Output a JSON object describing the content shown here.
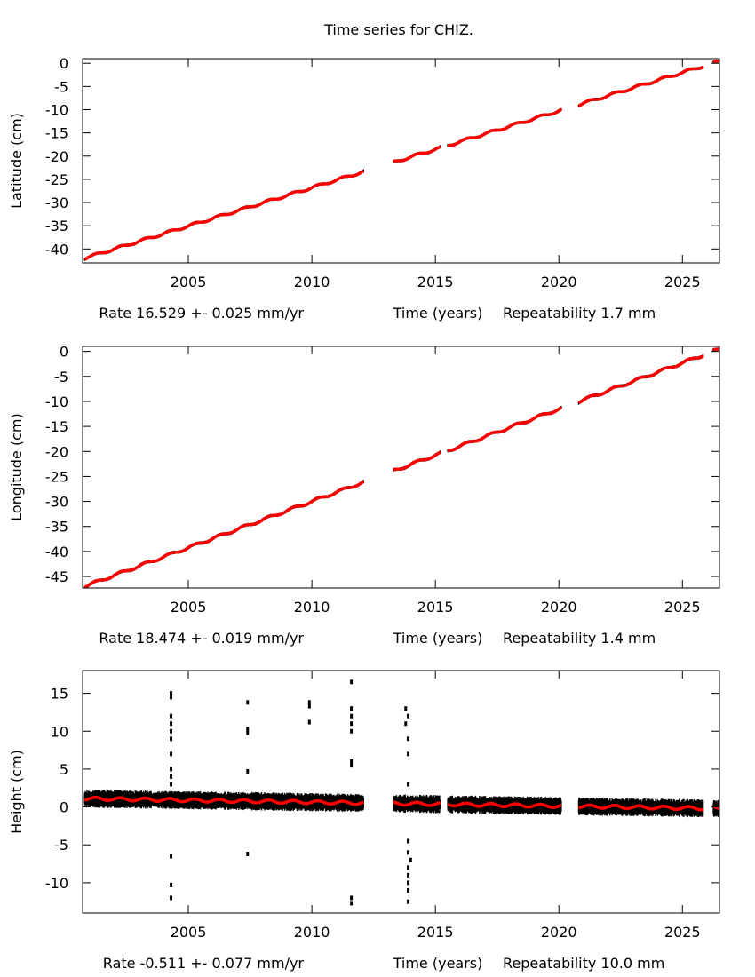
{
  "chart_data": {
    "title": "Time series for CHIZ.",
    "type": "scatter",
    "xlim": [
      2000.72,
      2026.5
    ],
    "xticks": [
      2005,
      2010,
      2015,
      2020,
      2025
    ],
    "xlabel": "Time (years)",
    "segments": [
      [
        2000.8,
        2012.1
      ],
      [
        2013.3,
        2015.2
      ],
      [
        2015.5,
        2020.1
      ],
      [
        2020.8,
        2025.85
      ],
      [
        2026.25,
        2026.5
      ]
    ],
    "panels": [
      {
        "ylabel": "Latitude (cm)",
        "ylim": [
          -43,
          1
        ],
        "yticks": [
          0,
          -5,
          -10,
          -15,
          -20,
          -25,
          -30,
          -35,
          -40
        ],
        "start_value": -42,
        "rate_cm_per_yr": 1.6529,
        "noise_cm": 0.3,
        "rate_text": "Rate 16.529 +- 0.025 mm/yr",
        "time_text": "Time (years)",
        "repeat_text": "Repeatability 1.7 mm",
        "outliers": []
      },
      {
        "ylabel": "Longitude (cm)",
        "ylim": [
          -47.3,
          1
        ],
        "yticks": [
          0,
          -5,
          -10,
          -15,
          -20,
          -25,
          -30,
          -35,
          -40,
          -45
        ],
        "start_value": -47,
        "rate_cm_per_yr": 1.8474,
        "noise_cm": 0.3,
        "rate_text": "Rate 18.474 +- 0.019 mm/yr",
        "time_text": "Time (years)",
        "repeat_text": "Repeatability 1.4 mm",
        "outliers": []
      },
      {
        "ylabel": "Height (cm)",
        "ylim": [
          -14,
          18
        ],
        "yticks": [
          15,
          10,
          5,
          0,
          -5,
          -10
        ],
        "start_value": 1.1,
        "rate_cm_per_yr": -0.0511,
        "noise_cm": 1.0,
        "rate_text": "Rate -0.511 +- 0.077 mm/yr",
        "time_text": "Time (years)",
        "repeat_text": "Repeatability 10.0 mm",
        "outliers": [
          [
            2004.3,
            15
          ],
          [
            2004.3,
            14.5
          ],
          [
            2004.3,
            12
          ],
          [
            2004.3,
            11
          ],
          [
            2004.3,
            10
          ],
          [
            2004.3,
            9
          ],
          [
            2004.3,
            7
          ],
          [
            2004.3,
            5
          ],
          [
            2004.3,
            4
          ],
          [
            2004.3,
            3
          ],
          [
            2004.3,
            -6.5
          ],
          [
            2004.3,
            -10.3
          ],
          [
            2004.3,
            -12
          ],
          [
            2007.4,
            13.8
          ],
          [
            2007.4,
            10.3
          ],
          [
            2007.4,
            9.8
          ],
          [
            2007.4,
            4.7
          ],
          [
            2007.4,
            -6.2
          ],
          [
            2009.9,
            13.8
          ],
          [
            2009.9,
            13.3
          ],
          [
            2009.9,
            11.2
          ],
          [
            2011.6,
            16.5
          ],
          [
            2011.6,
            13
          ],
          [
            2011.6,
            12
          ],
          [
            2011.6,
            11
          ],
          [
            2011.6,
            10
          ],
          [
            2011.6,
            6
          ],
          [
            2011.6,
            5.5
          ],
          [
            2011.6,
            -12
          ],
          [
            2011.6,
            -12.7
          ],
          [
            2013.8,
            13
          ],
          [
            2013.9,
            12
          ],
          [
            2013.8,
            11
          ],
          [
            2013.9,
            9
          ],
          [
            2013.9,
            7
          ],
          [
            2013.9,
            3
          ],
          [
            2013.9,
            -4.5
          ],
          [
            2013.9,
            -6
          ],
          [
            2014.0,
            -7
          ],
          [
            2013.9,
            -8
          ],
          [
            2013.9,
            -9
          ],
          [
            2013.9,
            -10
          ],
          [
            2013.9,
            -11
          ],
          [
            2013.9,
            -12.5
          ]
        ]
      }
    ],
    "colors": {
      "data": "#000000",
      "model": "#ff0000",
      "axis": "#000000"
    }
  }
}
